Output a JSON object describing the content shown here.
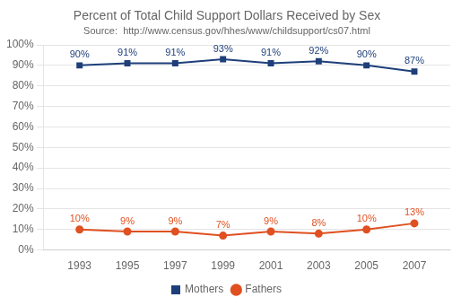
{
  "chart_data": {
    "type": "line",
    "title": "Percent of Total Child Support Dollars Received by Sex",
    "subtitle": "Source:  http://www.census.gov/hhes/www/childsupport/cs07.html",
    "x": [
      1993,
      1995,
      1997,
      1999,
      2001,
      2003,
      2005,
      2007
    ],
    "series": [
      {
        "name": "Mothers",
        "color": "#1e3f7a",
        "marker": "square",
        "values": [
          90,
          91,
          91,
          93,
          91,
          92,
          90,
          87
        ],
        "value_labels": [
          "90%",
          "91%",
          "91%",
          "93%",
          "91%",
          "92%",
          "90%",
          "87%"
        ]
      },
      {
        "name": "Fathers",
        "color": "#e05020",
        "marker": "circle",
        "values": [
          10,
          9,
          9,
          7,
          9,
          8,
          10,
          13
        ],
        "value_labels": [
          "10%",
          "9%",
          "9%",
          "7%",
          "9%",
          "8%",
          "10%",
          "13%"
        ]
      }
    ],
    "xlim": [
      1991.5,
      2008.5
    ],
    "xticks": [
      1993,
      1995,
      1997,
      1999,
      2001,
      2003,
      2005,
      2007
    ],
    "ylim": [
      0,
      100
    ],
    "yticks": [
      {
        "value": 0,
        "label": "0%"
      },
      {
        "value": 10,
        "label": "10%"
      },
      {
        "value": 20,
        "label": "20%"
      },
      {
        "value": 30,
        "label": "30%"
      },
      {
        "value": 40,
        "label": "40%"
      },
      {
        "value": 50,
        "label": "50%"
      },
      {
        "value": 60,
        "label": "60%"
      },
      {
        "value": 70,
        "label": "70%"
      },
      {
        "value": 80,
        "label": "80%"
      },
      {
        "value": 90,
        "label": "90%"
      },
      {
        "value": 100,
        "label": "100%"
      }
    ],
    "grid": "y",
    "legend": "bottom",
    "data_labels": true
  }
}
